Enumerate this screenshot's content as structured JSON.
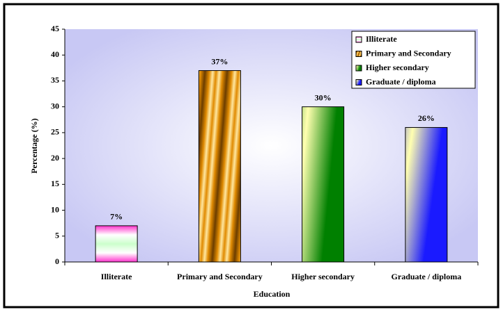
{
  "chart_data": {
    "type": "bar",
    "x_label": "Education",
    "y_label": "Percentage (%)",
    "categories": [
      "Illiterate",
      "Primary and Secondary",
      "Higher secondary",
      "Graduate / diploma"
    ],
    "values": [
      7,
      37,
      30,
      26
    ],
    "value_labels": [
      "7%",
      "37%",
      "30%",
      "26%"
    ],
    "colors": [
      "#ff33cc",
      "#e08a00",
      "#008000",
      "#1a1aff"
    ],
    "ylim": [
      0,
      45
    ],
    "yticks": [
      0,
      5,
      10,
      15,
      20,
      25,
      30,
      35,
      40,
      45
    ],
    "legend": "top-right"
  }
}
